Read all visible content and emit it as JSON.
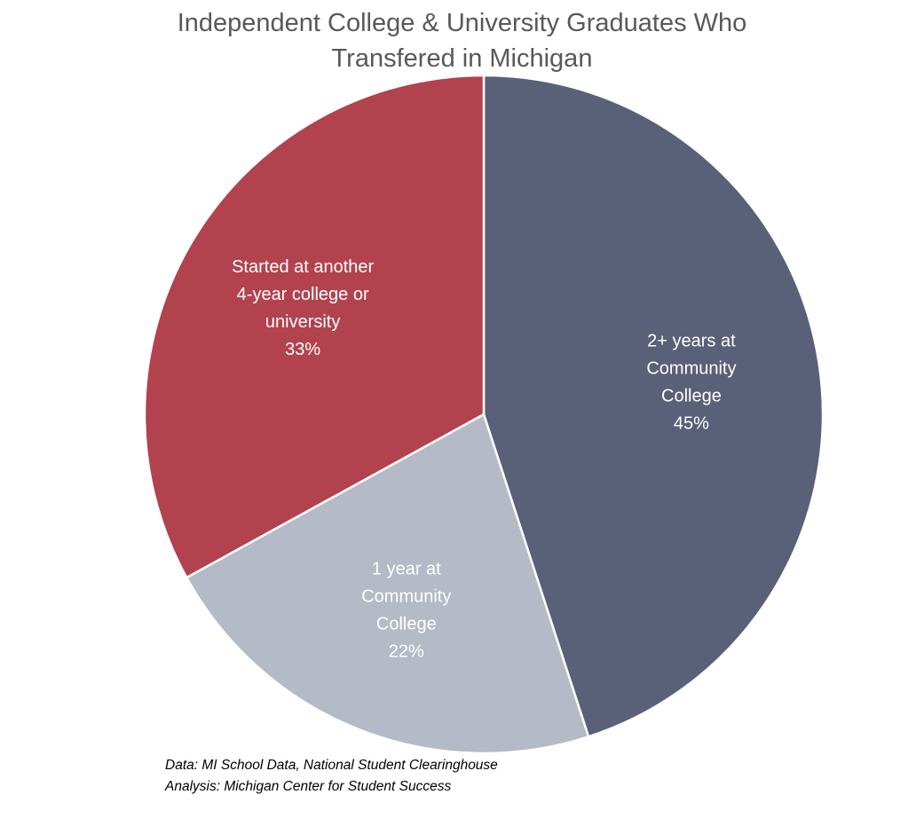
{
  "chart_data": {
    "type": "pie",
    "title_lines": [
      "Independent  College & University Graduates Who",
      "Transfered  in Michigan"
    ],
    "slices": [
      {
        "label_lines": [
          "2+ years at",
          "Community",
          "College"
        ],
        "value": 45,
        "value_label": "45%",
        "color": "#5a6078"
      },
      {
        "label_lines": [
          "1 year at",
          "Community",
          "College"
        ],
        "value": 22,
        "value_label": "22%",
        "color": "#b4bac6"
      },
      {
        "label_lines": [
          "Started at another",
          "4-year college or",
          "university"
        ],
        "value": 33,
        "value_label": "33%",
        "color": "#b2424e"
      }
    ],
    "start_angle": "12 o'clock",
    "direction": "clockwise"
  },
  "source_lines": [
    "Data: MI School Data, National Student Clearinghouse",
    "Analysis: Michigan Center for Student Success"
  ]
}
